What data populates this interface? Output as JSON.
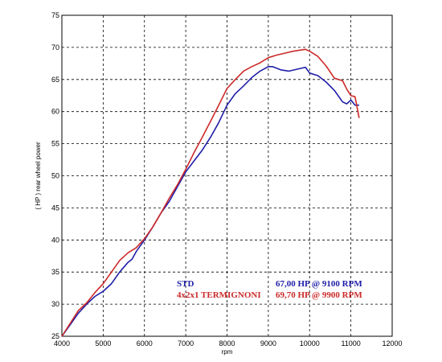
{
  "chart_data": {
    "type": "line",
    "xlabel": "rpm",
    "ylabel": "( HP )  rear  wheel  power",
    "xlim": [
      4000,
      12000
    ],
    "ylim": [
      25,
      75
    ],
    "x_ticks": [
      4000,
      5000,
      6000,
      7000,
      8000,
      9000,
      10000,
      11000,
      12000
    ],
    "y_ticks": [
      25,
      30,
      35,
      40,
      45,
      50,
      55,
      60,
      65,
      70,
      75
    ],
    "grid": true,
    "legend_position": "bottom-right",
    "colors": {
      "STD": "#1f1fa8",
      "TERMIGNONI": "#cc2a2a"
    },
    "series": [
      {
        "name": "STD",
        "summary": "67,00 HP @ 9100 RPM",
        "color": "#1f1fa8",
        "x": [
          4000,
          4200,
          4400,
          4600,
          4800,
          5000,
          5200,
          5400,
          5600,
          5700,
          5800,
          6000,
          6200,
          6400,
          6600,
          6800,
          7000,
          7200,
          7400,
          7600,
          7800,
          8000,
          8200,
          8400,
          8600,
          8800,
          9000,
          9100,
          9300,
          9500,
          9700,
          9900,
          10000,
          10200,
          10400,
          10600,
          10800,
          10900,
          11000,
          11100,
          11200
        ],
        "y": [
          25.0,
          26.8,
          28.6,
          30.0,
          31.2,
          32.0,
          33.2,
          35.0,
          36.5,
          37.0,
          38.2,
          40.0,
          42.0,
          44.2,
          46.0,
          48.3,
          50.6,
          52.3,
          54.0,
          56.0,
          58.3,
          61.0,
          62.8,
          64.0,
          65.3,
          66.3,
          67.0,
          67.0,
          66.5,
          66.3,
          66.6,
          66.9,
          66.0,
          65.6,
          64.6,
          63.3,
          61.5,
          61.2,
          61.8,
          61.0,
          61.0
        ]
      },
      {
        "name": "4x2x1 TERMIGNONI",
        "summary": "69,70 HP @ 9900 RPM",
        "color": "#cc2a2a",
        "x": [
          4000,
          4200,
          4400,
          4600,
          4800,
          5000,
          5200,
          5400,
          5600,
          5800,
          6000,
          6200,
          6400,
          6600,
          6800,
          7000,
          7200,
          7400,
          7600,
          7800,
          8000,
          8200,
          8400,
          8600,
          8800,
          9000,
          9200,
          9400,
          9600,
          9800,
          9900,
          10000,
          10200,
          10400,
          10600,
          10800,
          10900,
          11000,
          11100,
          11200
        ],
        "y": [
          25.0,
          27.0,
          29.0,
          30.2,
          31.8,
          33.2,
          35.0,
          36.8,
          38.0,
          38.8,
          40.2,
          42.0,
          44.2,
          46.5,
          48.6,
          51.0,
          53.6,
          56.0,
          58.5,
          61.0,
          63.6,
          65.0,
          66.3,
          67.0,
          67.6,
          68.4,
          68.8,
          69.1,
          69.4,
          69.6,
          69.7,
          69.4,
          68.6,
          67.1,
          65.2,
          64.8,
          63.5,
          62.5,
          62.3,
          59.0
        ]
      }
    ]
  }
}
